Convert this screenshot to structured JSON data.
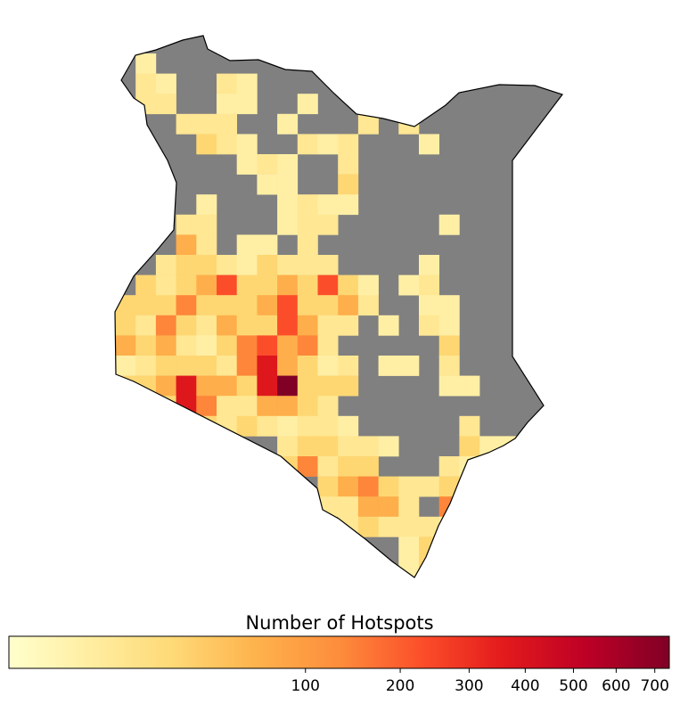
{
  "map": {
    "type": "heatmap-grid",
    "colormap": "YlOrRd",
    "norm": {
      "type": "power",
      "gamma": 0.4,
      "vmin": 0,
      "vmax": 740
    },
    "colorbar": {
      "label": "Number of Hotspots",
      "ticks": [
        100,
        200,
        300,
        400,
        500,
        600,
        700
      ]
    },
    "grid": [
      [
        null,
        3,
        null,
        null,
        null,
        null,
        null,
        null,
        null,
        null,
        null,
        null,
        null,
        null,
        null,
        null,
        null,
        null,
        null,
        null
      ],
      [
        null,
        8,
        3,
        null,
        null,
        8,
        3,
        null,
        null,
        null,
        null,
        null,
        null,
        null,
        null,
        null,
        null,
        null,
        null,
        null
      ],
      [
        null,
        8,
        8,
        null,
        null,
        3,
        3,
        null,
        null,
        3,
        null,
        null,
        null,
        null,
        null,
        null,
        null,
        null,
        null,
        null
      ],
      [
        null,
        null,
        null,
        8,
        8,
        8,
        null,
        null,
        3,
        null,
        null,
        null,
        8,
        null,
        8,
        null,
        null,
        null,
        null,
        null
      ],
      [
        null,
        null,
        null,
        null,
        25,
        8,
        3,
        null,
        null,
        8,
        3,
        8,
        null,
        null,
        null,
        3,
        null,
        null,
        null,
        null
      ],
      [
        null,
        null,
        null,
        null,
        null,
        null,
        3,
        8,
        3,
        null,
        null,
        8,
        null,
        null,
        null,
        null,
        null,
        null,
        null,
        null
      ],
      [
        null,
        null,
        null,
        null,
        null,
        null,
        null,
        3,
        3,
        null,
        null,
        25,
        null,
        null,
        null,
        null,
        null,
        null,
        null,
        null
      ],
      [
        null,
        null,
        null,
        null,
        3,
        null,
        null,
        null,
        3,
        8,
        3,
        3,
        null,
        null,
        null,
        null,
        null,
        null,
        null,
        null
      ],
      [
        null,
        null,
        null,
        8,
        8,
        null,
        null,
        null,
        3,
        8,
        8,
        null,
        null,
        null,
        null,
        null,
        3,
        null,
        null,
        null
      ],
      [
        null,
        null,
        null,
        70,
        8,
        null,
        3,
        3,
        null,
        8,
        null,
        null,
        null,
        null,
        null,
        null,
        null,
        null,
        null,
        null
      ],
      [
        null,
        null,
        8,
        25,
        25,
        8,
        3,
        25,
        8,
        8,
        8,
        null,
        null,
        null,
        null,
        3,
        null,
        null,
        null,
        null
      ],
      [
        null,
        25,
        8,
        25,
        70,
        230,
        25,
        25,
        70,
        25,
        230,
        25,
        3,
        null,
        3,
        8,
        null,
        null,
        null,
        null
      ],
      [
        25,
        25,
        25,
        140,
        25,
        25,
        25,
        70,
        230,
        25,
        25,
        70,
        8,
        null,
        null,
        3,
        3,
        null,
        null,
        null
      ],
      [
        25,
        8,
        140,
        25,
        8,
        70,
        25,
        25,
        230,
        70,
        8,
        8,
        null,
        3,
        null,
        8,
        3,
        null,
        null,
        null
      ],
      [
        70,
        25,
        70,
        8,
        3,
        25,
        140,
        230,
        70,
        140,
        8,
        null,
        null,
        null,
        null,
        null,
        25,
        null,
        null,
        null
      ],
      [
        3,
        8,
        25,
        25,
        25,
        8,
        140,
        380,
        70,
        25,
        3,
        8,
        null,
        3,
        3,
        null,
        8,
        null,
        null,
        null
      ],
      [
        25,
        25,
        70,
        380,
        70,
        70,
        25,
        380,
        740,
        25,
        25,
        25,
        null,
        null,
        null,
        null,
        3,
        3,
        null,
        null
      ],
      [
        null,
        null,
        25,
        380,
        140,
        8,
        8,
        70,
        70,
        25,
        8,
        null,
        null,
        null,
        null,
        null,
        null,
        null,
        null,
        null
      ],
      [
        null,
        null,
        null,
        null,
        25,
        8,
        25,
        8,
        3,
        8,
        8,
        3,
        null,
        null,
        null,
        null,
        null,
        8,
        null,
        null
      ],
      [
        null,
        null,
        null,
        null,
        null,
        null,
        null,
        null,
        8,
        25,
        25,
        8,
        8,
        3,
        null,
        null,
        null,
        25,
        3,
        3
      ],
      [
        null,
        null,
        null,
        null,
        null,
        null,
        null,
        null,
        25,
        140,
        8,
        25,
        25,
        null,
        null,
        null,
        8,
        3,
        null,
        null
      ],
      [
        null,
        null,
        null,
        null,
        null,
        null,
        null,
        null,
        null,
        null,
        25,
        70,
        140,
        25,
        8,
        8,
        25,
        8,
        null,
        null
      ],
      [
        null,
        null,
        null,
        null,
        null,
        null,
        null,
        null,
        null,
        null,
        8,
        8,
        70,
        70,
        8,
        null,
        140,
        8,
        null,
        null
      ],
      [
        null,
        null,
        null,
        null,
        null,
        null,
        null,
        null,
        null,
        null,
        null,
        8,
        25,
        8,
        8,
        8,
        3,
        null,
        null,
        null
      ],
      [
        null,
        null,
        null,
        null,
        null,
        null,
        null,
        null,
        null,
        null,
        null,
        null,
        null,
        null,
        3,
        25,
        null,
        null,
        null,
        null
      ],
      [
        null,
        null,
        null,
        null,
        null,
        null,
        null,
        null,
        null,
        null,
        null,
        null,
        null,
        null,
        3,
        25,
        null,
        null,
        null,
        null
      ]
    ]
  }
}
